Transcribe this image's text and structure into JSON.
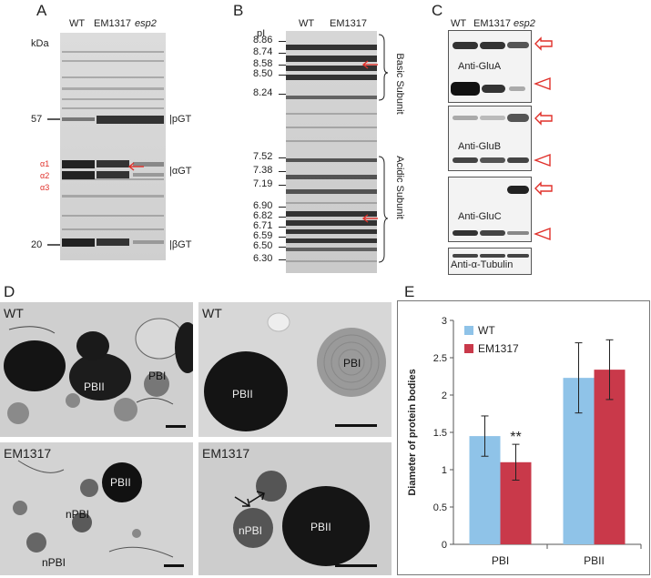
{
  "panels": {
    "A": {
      "letter": "A",
      "unit": "kDa",
      "lanes": [
        "WT",
        "EM1317",
        "esp2"
      ],
      "markers": [
        "57",
        "20"
      ],
      "alpha_labels": [
        "α1",
        "α2",
        "α3"
      ],
      "bands": [
        "pGT",
        "αGT",
        "βGT"
      ]
    },
    "B": {
      "letter": "B",
      "axis_label": "pI",
      "lanes": [
        "WT",
        "EM1317"
      ],
      "pi_values": [
        "8.86",
        "8.74",
        "8.58",
        "8.50",
        "8.24",
        "7.52",
        "7.38",
        "7.19",
        "6.90",
        "6.82",
        "6.71",
        "6.59",
        "6.50",
        "6.30"
      ],
      "groups": [
        "Basic Subunit",
        "Acidic Subunit"
      ]
    },
    "C": {
      "letter": "C",
      "lanes": [
        "WT",
        "EM1317",
        "esp2"
      ],
      "blots": [
        "Anti-GluA",
        "Anti-GluB",
        "Anti-GluC",
        "Anti-α-Tubulin"
      ]
    },
    "D": {
      "letter": "D",
      "images": [
        {
          "title": "WT",
          "labels": [
            "PBI",
            "PBII"
          ]
        },
        {
          "title": "WT",
          "labels": [
            "PBII",
            "PBI"
          ]
        },
        {
          "title": "EM1317",
          "labels": [
            "PBII",
            "nPBI",
            "nPBI"
          ]
        },
        {
          "title": "EM1317",
          "labels": [
            "nPBI",
            "PBII"
          ]
        }
      ]
    },
    "E": {
      "letter": "E"
    }
  },
  "chart_data": {
    "type": "bar",
    "categories": [
      "PBI",
      "PBII"
    ],
    "series": [
      {
        "name": "WT",
        "values": [
          1.45,
          2.23
        ],
        "errors": [
          0.27,
          0.47
        ],
        "color": "#8fc3e8"
      },
      {
        "name": "EM1317",
        "values": [
          1.1,
          2.34
        ],
        "errors": [
          0.24,
          0.4
        ],
        "color": "#c9394a"
      }
    ],
    "ylabel": "Diameter of protein bodies",
    "ylim": [
      0,
      3
    ],
    "yticks": [
      "0",
      "0.5",
      "1",
      "1.5",
      "2",
      "2.5",
      "3"
    ],
    "annotation": "**",
    "legend_position": "top-left",
    "grid": false
  }
}
